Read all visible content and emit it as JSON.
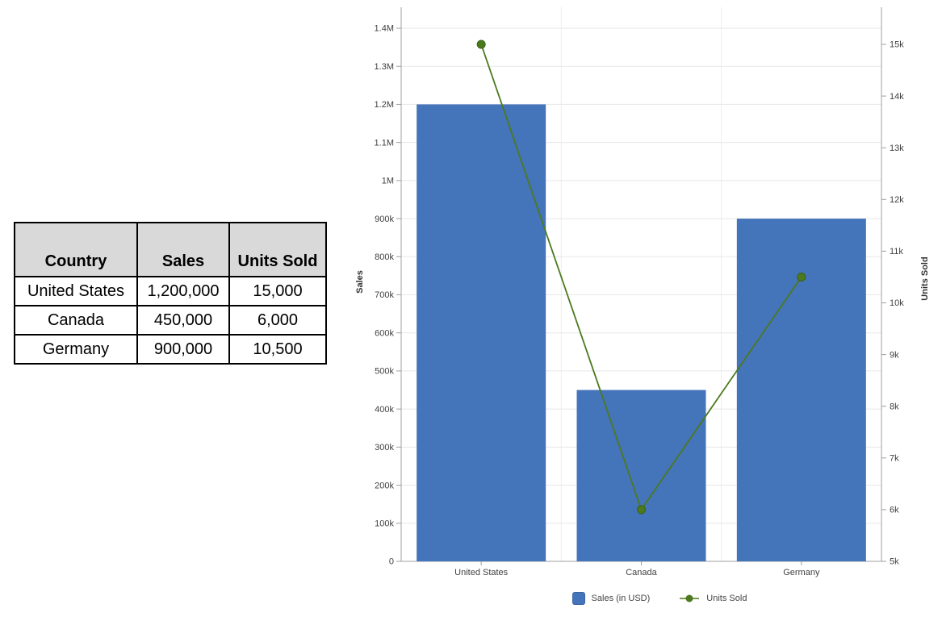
{
  "table": {
    "columns": [
      "Country",
      "Sales",
      "Units Sold"
    ],
    "rows": [
      [
        "United States",
        "1,200,000",
        "15,000"
      ],
      [
        "Canada",
        "450,000",
        "6,000"
      ],
      [
        "Germany",
        "900,000",
        "10,500"
      ]
    ],
    "header_bg": "#d9d9d9",
    "border_color": "#000000"
  },
  "chart_data": {
    "type": "bar",
    "subtype": "combo bar + line, dual y-axes",
    "categories": [
      "United States",
      "Canada",
      "Germany"
    ],
    "series": [
      {
        "name": "Sales (in USD)",
        "render": "bar",
        "axis": "left",
        "values": [
          1200000,
          450000,
          900000
        ],
        "color": "#4474BA"
      },
      {
        "name": "Units Sold",
        "render": "line",
        "axis": "right",
        "values": [
          15000,
          6000,
          10500
        ],
        "color": "#4C791E"
      }
    ],
    "left_axis": {
      "title": "Sales",
      "min": 0,
      "max": 1400000,
      "tick_step": 100000,
      "tick_labels": [
        "0",
        "100k",
        "200k",
        "300k",
        "400k",
        "500k",
        "600k",
        "700k",
        "800k",
        "900k",
        "1M",
        "1.1M",
        "1.2M",
        "1.3M",
        "1.4M"
      ]
    },
    "right_axis": {
      "title": "Units Sold",
      "min": 5000,
      "max": 15000,
      "tick_step": 1000,
      "tick_labels": [
        "5k",
        "6k",
        "7k",
        "8k",
        "9k",
        "10k",
        "11k",
        "12k",
        "13k",
        "14k",
        "15k"
      ]
    },
    "legend": [
      {
        "label": "Sales (in USD)",
        "marker": "square",
        "color": "#4474BA"
      },
      {
        "label": "Units Sold",
        "marker": "line-dot",
        "color": "#4C791E"
      }
    ],
    "grid": {
      "horizontal": "on (every 100k)",
      "vertical": "category boundaries",
      "legend_position": "bottom center"
    },
    "style": {
      "gridline_color": "#e7e7e7",
      "boundary_gridline_color": "#ededed",
      "axis_line_color": "#9f9f9f",
      "tick_text_color": "#3f3f3f",
      "dot_stroke_color": "#3a6212",
      "background": "#ffffff"
    }
  }
}
